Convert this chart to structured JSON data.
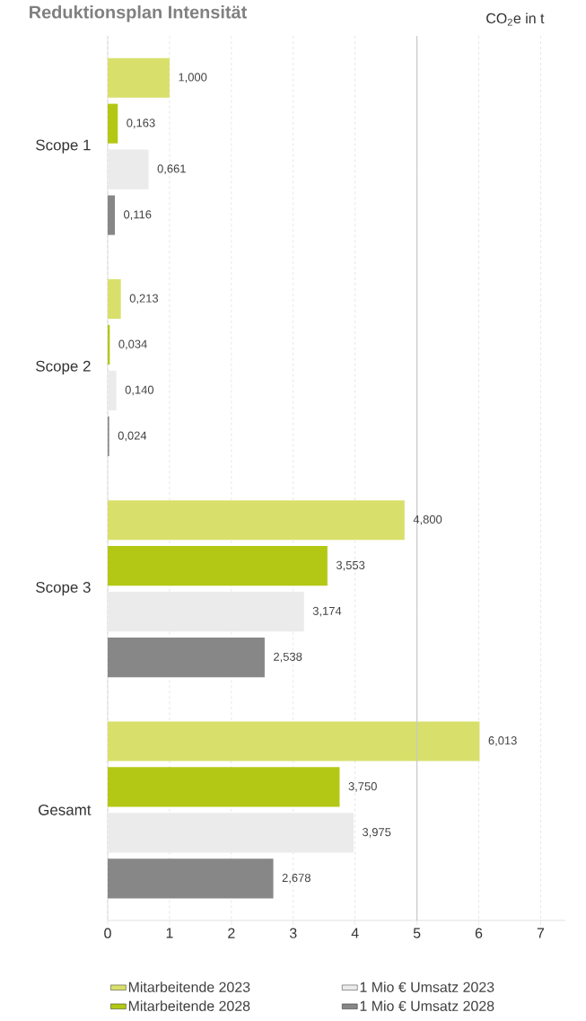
{
  "chart_data": {
    "type": "bar",
    "orientation": "horizontal",
    "title": "Reduktionsplan Intensität",
    "xlabel": "CO$_{2}$e in t",
    "categories": [
      "Scope 1",
      "Scope 2",
      "Scope 3",
      "Gesamt"
    ],
    "series": [
      {
        "name": "Mitarbeitende 2023",
        "color": "#d8e06b",
        "values": [
          1.0,
          0.213,
          4.8,
          6.013
        ],
        "value_labels": [
          "1,000",
          "0,213",
          "4,800",
          "6,013"
        ]
      },
      {
        "name": "Mitarbeitende 2028",
        "color": "#b3c814",
        "values": [
          0.163,
          0.034,
          3.553,
          3.75
        ],
        "value_labels": [
          "0,163",
          "0,034",
          "3,553",
          "3,750"
        ]
      },
      {
        "name": "1 Mio € Umsatz 2023",
        "color": "#ebebeb",
        "values": [
          0.661,
          0.14,
          3.174,
          3.975
        ],
        "value_labels": [
          "0,661",
          "0,140",
          "3,174",
          "3,975"
        ]
      },
      {
        "name": "1 Mio € Umsatz 2028",
        "color": "#878787",
        "values": [
          0.116,
          0.024,
          2.538,
          2.678
        ],
        "value_labels": [
          "0,116",
          "0,024",
          "2,538",
          "2,678"
        ]
      }
    ],
    "xlim": [
      0,
      7.4
    ],
    "xticks": [
      0,
      1,
      2,
      3,
      4,
      5,
      6,
      7
    ],
    "grid": "x",
    "legend": "bottom",
    "ref_lines": [
      {
        "axis": "x",
        "value": 5,
        "color": "#c8c8c8"
      }
    ]
  }
}
